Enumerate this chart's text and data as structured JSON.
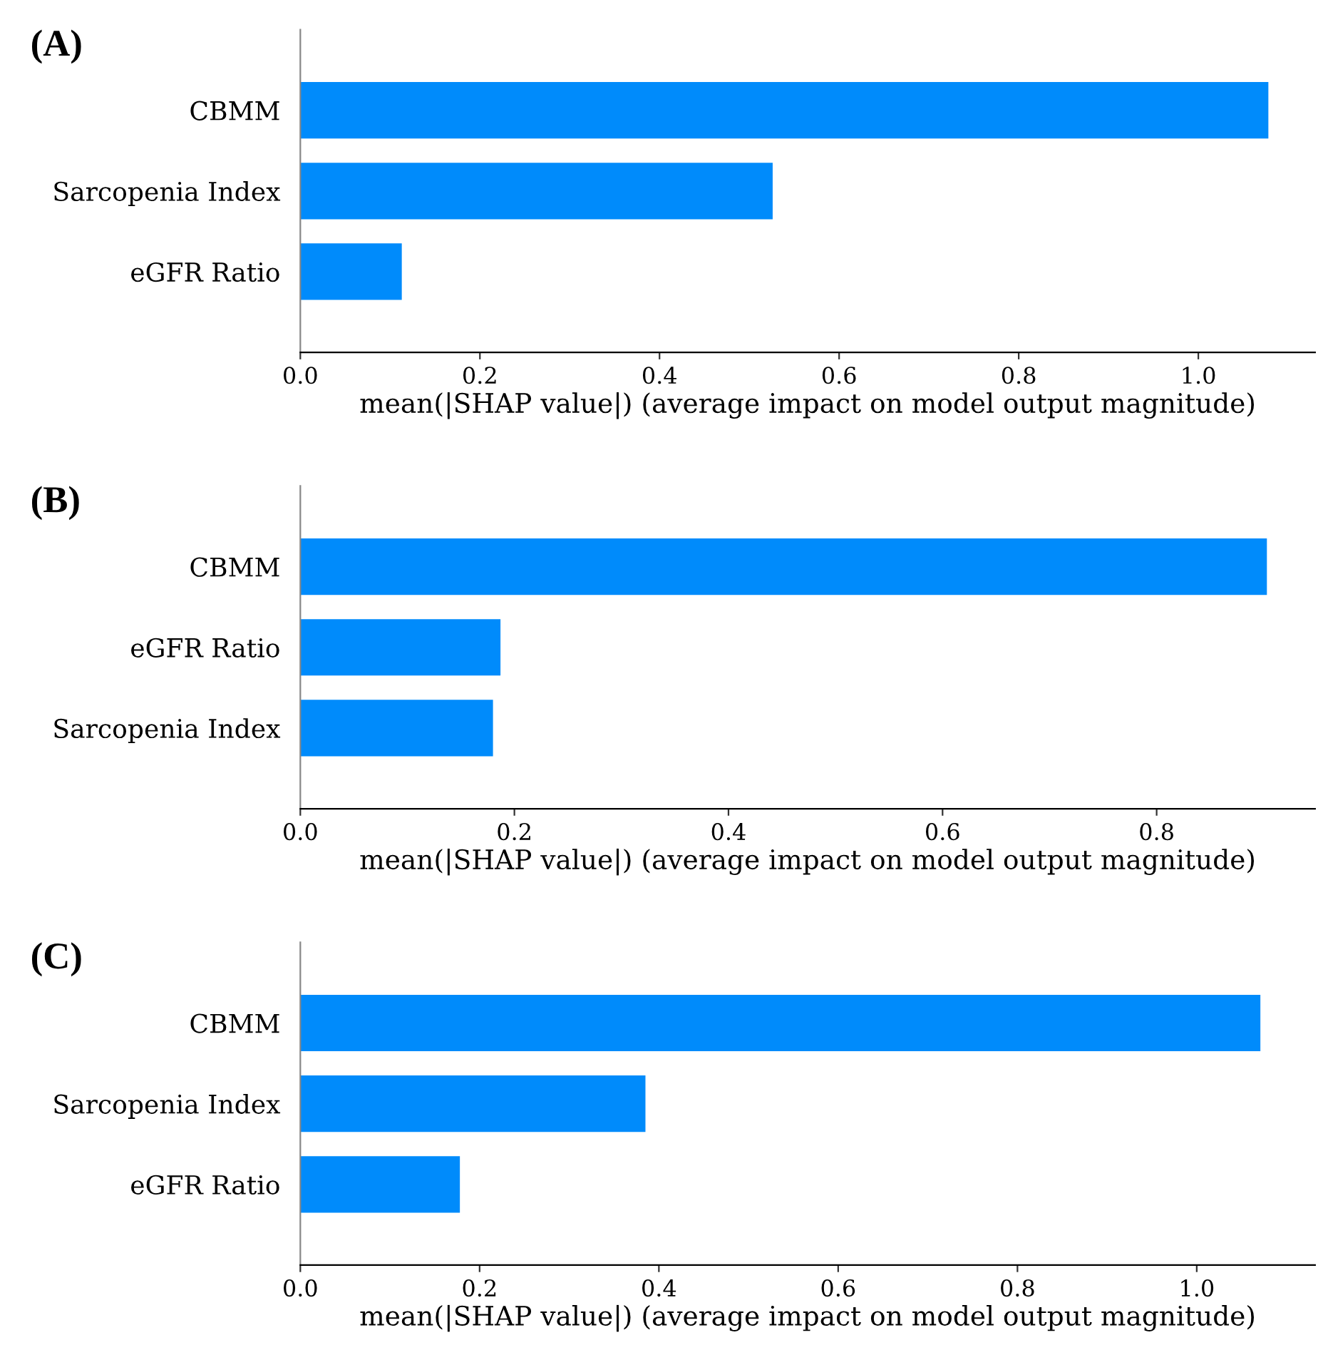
{
  "chart_data": [
    {
      "type": "bar",
      "orientation": "horizontal",
      "title": "(A)",
      "categories": [
        "CBMM",
        "Sarcopenia Index",
        "eGFR Ratio"
      ],
      "values": [
        1.078,
        0.526,
        0.113
      ],
      "color": "#008bfb",
      "xlabel": "mean(|SHAP value|) (average impact on model output magnitude)",
      "xlim": [
        0,
        1.13
      ],
      "xticks": [
        {
          "value": 0,
          "label": "0.0"
        },
        {
          "value": 0.2,
          "label": "0.2"
        },
        {
          "value": 0.4,
          "label": "0.4"
        },
        {
          "value": 0.6,
          "label": "0.6"
        },
        {
          "value": 0.8,
          "label": "0.8"
        },
        {
          "value": 1.0,
          "label": "1.0"
        }
      ],
      "grid": false,
      "legend": false
    },
    {
      "type": "bar",
      "orientation": "horizontal",
      "title": "(B)",
      "categories": [
        "CBMM",
        "eGFR Ratio",
        "Sarcopenia Index"
      ],
      "values": [
        0.903,
        0.187,
        0.18
      ],
      "color": "#008bfb",
      "xlabel": "mean(|SHAP value|) (average impact on model output magnitude)",
      "xlim": [
        0,
        0.948
      ],
      "xticks": [
        {
          "value": 0,
          "label": "0.0"
        },
        {
          "value": 0.2,
          "label": "0.2"
        },
        {
          "value": 0.4,
          "label": "0.4"
        },
        {
          "value": 0.6,
          "label": "0.6"
        },
        {
          "value": 0.8,
          "label": "0.8"
        }
      ],
      "grid": false,
      "legend": false
    },
    {
      "type": "bar",
      "orientation": "horizontal",
      "title": "(C)",
      "categories": [
        "CBMM",
        "Sarcopenia Index",
        "eGFR Ratio"
      ],
      "values": [
        1.071,
        0.385,
        0.178
      ],
      "color": "#008bfb",
      "xlabel": "mean(|SHAP value|) (average impact on model output magnitude)",
      "xlim": [
        0,
        1.132
      ],
      "xticks": [
        {
          "value": 0,
          "label": "0.0"
        },
        {
          "value": 0.2,
          "label": "0.2"
        },
        {
          "value": 0.4,
          "label": "0.4"
        },
        {
          "value": 0.6,
          "label": "0.6"
        },
        {
          "value": 0.8,
          "label": "0.8"
        },
        {
          "value": 1.0,
          "label": "1.0"
        }
      ],
      "grid": false,
      "legend": false
    }
  ]
}
